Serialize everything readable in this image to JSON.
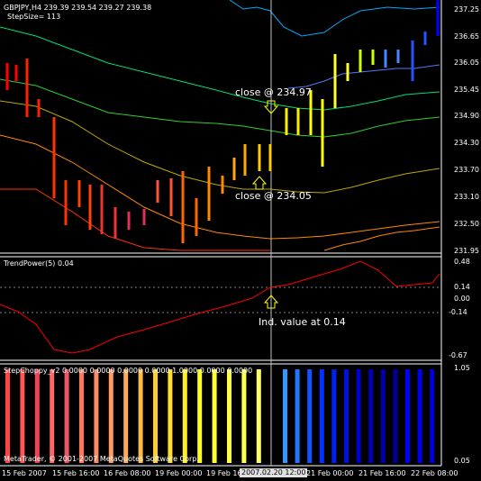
{
  "main": {
    "symbol_header": "GBPJPY,H4  239.39 239.54 239.27 239.38",
    "stepsize_label": "StepSize= 113",
    "price_labels": [
      "237.25",
      "236.65",
      "236.05",
      "235.45",
      "234.90",
      "234.30",
      "233.70",
      "233.10",
      "232.50",
      "231.95"
    ],
    "annotation_close1": "close @ 234.97",
    "annotation_close2": "close @ 234.05"
  },
  "trendpower": {
    "title": "TrendPower(5) 0.04",
    "levels": [
      "0.48",
      "0.14",
      "0.00",
      "-0.14",
      "-0.67"
    ],
    "annotation": "Ind. value at 0.14"
  },
  "stepchoppy": {
    "title": "StepChoppy_v2",
    "values_text": "0.0000 0.0000 0.0000 0.0000 1.0000 0.0000 0.0000",
    "levels": [
      "1.05",
      "0.05"
    ],
    "copyright": "MetaTrader, © 2001-2007 MetaQuotes Software Corp."
  },
  "xaxis": {
    "labels": [
      "15 Feb 2007",
      "15 Feb 16:00",
      "16 Feb 08:00",
      "19 Feb 00:00",
      "19 Feb 16",
      "21 Feb 00:00",
      "21 Feb 16:00",
      "22 Feb 08:00"
    ],
    "selected": "2007.02.20 12:00"
  },
  "colors": {
    "grid": "#808080",
    "cursor": "#c0c0c0",
    "bar_bull": "#0000ff",
    "bar_bear": "#ff0000",
    "trend_line": "#ff0000"
  }
}
